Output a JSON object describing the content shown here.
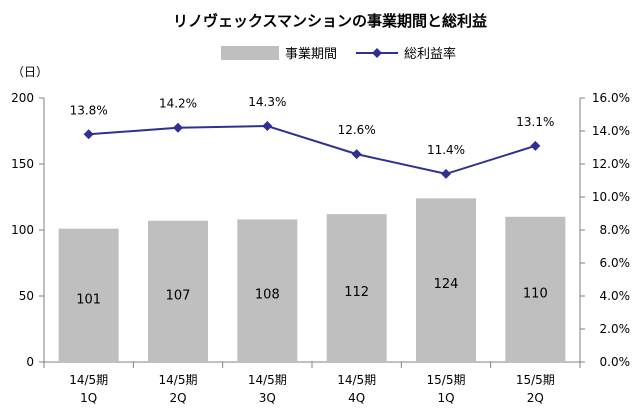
{
  "chart_data": {
    "type": "bar+line",
    "title": "リノヴェックスマンションの事業期間と総利益",
    "y_unit_label": "（日）",
    "categories": [
      [
        "14/5期",
        "1Q"
      ],
      [
        "14/5期",
        "2Q"
      ],
      [
        "14/5期",
        "3Q"
      ],
      [
        "14/5期",
        "4Q"
      ],
      [
        "15/5期",
        "1Q"
      ],
      [
        "15/5期",
        "2Q"
      ]
    ],
    "series": [
      {
        "name": "事業期間",
        "type": "bar",
        "axis": "left",
        "color": "#bfbfbf",
        "values": [
          101,
          107,
          108,
          112,
          124,
          110
        ],
        "labels": [
          "101",
          "107",
          "108",
          "112",
          "124",
          "110"
        ]
      },
      {
        "name": "総利益率",
        "type": "line",
        "axis": "right",
        "color": "#2e3192",
        "values": [
          13.8,
          14.2,
          14.3,
          12.6,
          11.4,
          13.1
        ],
        "labels": [
          "13.8%",
          "14.2%",
          "14.3%",
          "12.6%",
          "11.4%",
          "13.1%"
        ]
      }
    ],
    "y_left": {
      "min": 0,
      "max": 200,
      "ticks": [
        "0",
        "50",
        "100",
        "150",
        "200"
      ]
    },
    "y_right": {
      "min": 0,
      "max": 16,
      "ticks": [
        "0.0%",
        "2.0%",
        "4.0%",
        "6.0%",
        "8.0%",
        "10.0%",
        "12.0%",
        "14.0%",
        "16.0%"
      ]
    },
    "legend_position": "top"
  }
}
